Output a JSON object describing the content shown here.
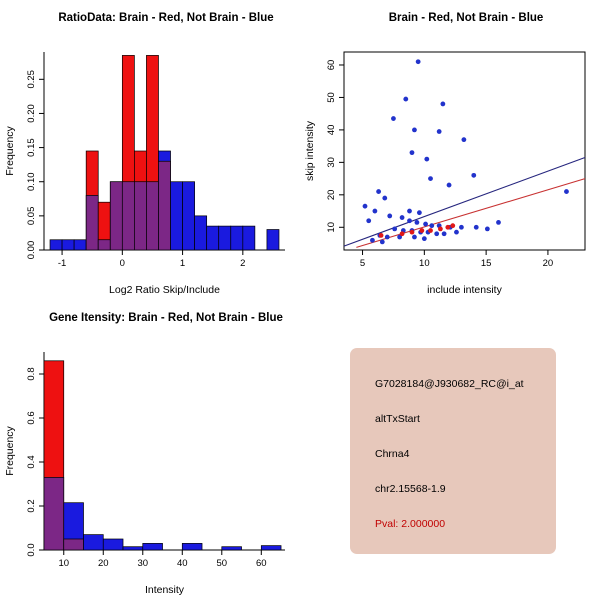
{
  "window": {
    "background": "#FFFFFF"
  },
  "colors": {
    "red": "#EE1111",
    "blue": "#1A1ADF",
    "overlap": "#7C2786",
    "bar_border": "#000000",
    "point_blue": "#2233CC",
    "point_red": "#E01818",
    "line_navy": "#26267E",
    "line_red": "#C83232",
    "axis": "#000000",
    "info_box_bg": "#E7C8BB",
    "pval_text": "#C00000"
  },
  "chart_data": [
    {
      "type": "bar",
      "title": "RatioData: Brain - Red, Not Brain - Blue",
      "xlabel": "Log2 Ratio Skip/Include",
      "ylabel": "Frequency",
      "xlim": [
        -1.3,
        2.7
      ],
      "ylim": [
        0,
        0.29
      ],
      "grid": false,
      "legend_position": "none",
      "color_legend": {
        "Brain": "red",
        "Not Brain": "blue"
      },
      "xticks": {
        "values": [
          -1,
          0,
          1,
          2
        ],
        "labels": [
          "-1",
          "0",
          "1",
          "2"
        ]
      },
      "yticks": {
        "values": [
          0,
          0.05,
          0.1,
          0.15,
          0.2,
          0.25
        ],
        "labels": [
          "0.00",
          "0.05",
          "0.10",
          "0.15",
          "0.20",
          "0.25"
        ]
      },
      "bin_width": 0.2,
      "series": [
        {
          "name": "not-brain",
          "color_key": "blue",
          "bin_start": -1.2,
          "values": [
            0.015,
            0.015,
            0.015,
            0.08,
            0.015,
            0.1,
            0.1,
            0.1,
            0.1,
            0.145,
            0.1,
            0.1,
            0.05,
            0.035,
            0.035,
            0.035,
            0.035,
            0,
            0.03
          ]
        },
        {
          "name": "brain",
          "color_key": "red",
          "bin_start": -0.6,
          "values": [
            0.145,
            0.07,
            0.1,
            0.285,
            0.145,
            0.285,
            0.13
          ]
        }
      ]
    },
    {
      "type": "scatter",
      "title": "Brain - Red, Not Brain - Blue",
      "xlabel": "include intensity",
      "ylabel": "skip intensity",
      "xlim": [
        3.5,
        23
      ],
      "ylim": [
        3,
        64
      ],
      "grid": false,
      "legend_position": "none",
      "color_legend": {
        "Brain": "red",
        "Not Brain": "blue"
      },
      "xticks": {
        "values": [
          5,
          10,
          15,
          20
        ],
        "labels": [
          "5",
          "10",
          "15",
          "20"
        ]
      },
      "yticks": {
        "values": [
          10,
          20,
          30,
          40,
          50,
          60
        ],
        "labels": [
          "10",
          "20",
          "30",
          "40",
          "50",
          "60"
        ]
      },
      "series": [
        {
          "name": "not-brain",
          "color_key": "point_blue",
          "points": [
            [
              9.5,
              61
            ],
            [
              8.5,
              49.5
            ],
            [
              11.5,
              48
            ],
            [
              7.5,
              43.5
            ],
            [
              9.2,
              40
            ],
            [
              11.2,
              39.5
            ],
            [
              13.2,
              37
            ],
            [
              9.0,
              33
            ],
            [
              10.2,
              31
            ],
            [
              14.0,
              26
            ],
            [
              10.5,
              25
            ],
            [
              12.0,
              23
            ],
            [
              21.5,
              21
            ],
            [
              6.3,
              21
            ],
            [
              6.8,
              19
            ],
            [
              5.2,
              16.5
            ],
            [
              6.0,
              15
            ],
            [
              8.8,
              15
            ],
            [
              9.6,
              14.5
            ],
            [
              7.2,
              13.5
            ],
            [
              8.2,
              13
            ],
            [
              5.5,
              12
            ],
            [
              8.8,
              12
            ],
            [
              9.4,
              11.5
            ],
            [
              10.1,
              11
            ],
            [
              10.6,
              10.5
            ],
            [
              11.2,
              10.5
            ],
            [
              12.1,
              10
            ],
            [
              13.0,
              10
            ],
            [
              14.2,
              10
            ],
            [
              15.1,
              9.5
            ],
            [
              16.0,
              11.5
            ],
            [
              7.6,
              9.5
            ],
            [
              8.3,
              9
            ],
            [
              9.0,
              9
            ],
            [
              9.7,
              8.5
            ],
            [
              10.3,
              8.5
            ],
            [
              12.6,
              8.5
            ],
            [
              11.0,
              8
            ],
            [
              11.6,
              8
            ],
            [
              6.4,
              7.5
            ],
            [
              7.0,
              7
            ],
            [
              8.0,
              7
            ],
            [
              9.2,
              7
            ],
            [
              10.0,
              6.5
            ],
            [
              5.8,
              6
            ],
            [
              6.6,
              5.5
            ]
          ]
        },
        {
          "name": "brain",
          "color_key": "point_red",
          "points": [
            [
              6.5,
              7.5
            ],
            [
              8.2,
              8
            ],
            [
              9.0,
              8.5
            ],
            [
              9.8,
              9
            ],
            [
              10.5,
              9
            ],
            [
              11.3,
              9.5
            ],
            [
              11.9,
              10
            ],
            [
              12.3,
              10.5
            ]
          ]
        }
      ],
      "lines": [
        {
          "name": "not-brain-fit",
          "color_key": "line_navy",
          "x1": 3.5,
          "y1": 4.2,
          "x2": 23,
          "y2": 31.5
        },
        {
          "name": "brain-fit",
          "color_key": "line_red",
          "x1": 4.5,
          "y1": 3.8,
          "x2": 23,
          "y2": 25
        }
      ]
    },
    {
      "type": "bar",
      "title": "Gene Itensity: Brain - Red, Not Brain - Blue",
      "xlabel": "Intensity",
      "ylabel": "Frequency",
      "xlim": [
        5,
        66
      ],
      "ylim": [
        0,
        0.9
      ],
      "grid": false,
      "legend_position": "none",
      "color_legend": {
        "Brain": "red",
        "Not Brain": "blue"
      },
      "xticks": {
        "values": [
          10,
          20,
          30,
          40,
          50,
          60
        ],
        "labels": [
          "10",
          "20",
          "30",
          "40",
          "50",
          "60"
        ]
      },
      "yticks": {
        "values": [
          0,
          0.2,
          0.4,
          0.6,
          0.8
        ],
        "labels": [
          "0.0",
          "0.2",
          "0.4",
          "0.6",
          "0.8"
        ]
      },
      "bin_width": 5,
      "series": [
        {
          "name": "not-brain",
          "color_key": "blue",
          "bin_start": 5,
          "values": [
            0.33,
            0.215,
            0.07,
            0.05,
            0.015,
            0.03,
            0,
            0.03,
            0,
            0.015,
            0,
            0.02
          ]
        },
        {
          "name": "brain",
          "color_key": "red",
          "bin_start": 5,
          "values": [
            0.86,
            0.05
          ]
        }
      ]
    }
  ],
  "info_box": {
    "lines": [
      "G7028184@J930682_RC@i_at",
      "altTxStart",
      "Chrna4",
      "chr2.15568-1.9"
    ],
    "pval": "Pval: 2.000000"
  }
}
